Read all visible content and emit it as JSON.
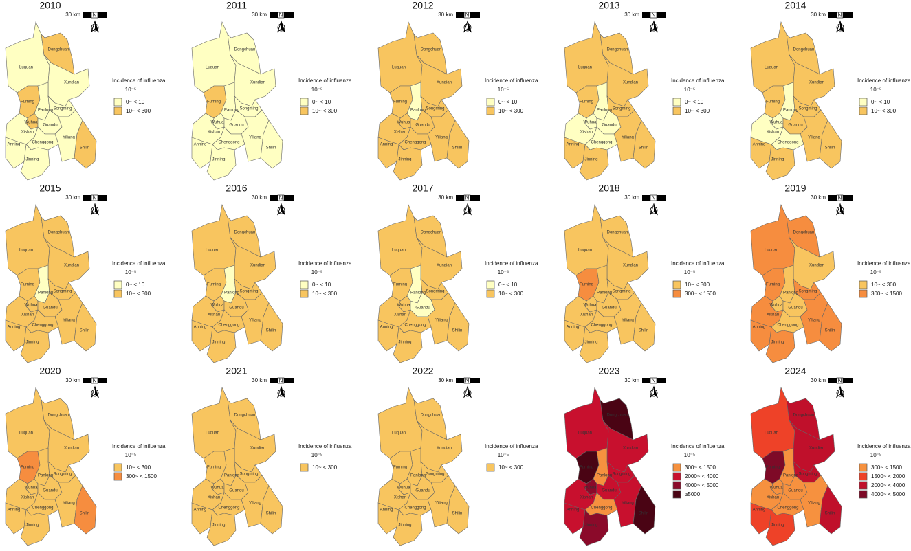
{
  "districts": [
    "Luquan",
    "Dongchuan",
    "Xundian",
    "Fuming",
    "Panlong",
    "Songming",
    "Wuhua",
    "Guandu",
    "Xishan",
    "Yiliang",
    "Anning",
    "Chenggong",
    "Shilin",
    "Jinning"
  ],
  "scale_label": "30 km",
  "north_label": "N",
  "legend_title": "Incidence of influenza",
  "legend_unit": "10⁻⁵",
  "panels": [
    {
      "year": "2010",
      "legend": [
        {
          "label": "0~ < 10",
          "color": "#ffffc2"
        },
        {
          "label": "10~ < 300",
          "color": "#f8c55f"
        }
      ],
      "district_colors": [
        "#ffffc2",
        "#f8c55f",
        "#ffffc2",
        "#f8c55f",
        "#ffffc2",
        "#ffffc2",
        "#f8c55f",
        "#ffffc2",
        "#ffffc2",
        "#ffffc2",
        "#ffffc2",
        "#ffffc2",
        "#f8c55f",
        "#ffffc2"
      ]
    },
    {
      "year": "2011",
      "legend": [
        {
          "label": "0~ < 10",
          "color": "#ffffc2"
        },
        {
          "label": "10~ < 300",
          "color": "#f8c55f"
        }
      ],
      "district_colors": [
        "#ffffc2",
        "#ffffc2",
        "#ffffc2",
        "#f8c55f",
        "#ffffc2",
        "#ffffc2",
        "#ffffc2",
        "#ffffc2",
        "#ffffc2",
        "#ffffc2",
        "#ffffc2",
        "#ffffc2",
        "#ffffc2",
        "#ffffc2"
      ]
    },
    {
      "year": "2012",
      "legend": [
        {
          "label": "0~ < 10",
          "color": "#ffffc2"
        },
        {
          "label": "10~ < 300",
          "color": "#f8c55f"
        }
      ],
      "district_colors": [
        "#f8c55f",
        "#f8c55f",
        "#f8c55f",
        "#f8c55f",
        "#ffffc2",
        "#f8c55f",
        "#f8c55f",
        "#f8c55f",
        "#f8c55f",
        "#f8c55f",
        "#f8c55f",
        "#f8c55f",
        "#f8c55f",
        "#f8c55f"
      ]
    },
    {
      "year": "2013",
      "legend": [
        {
          "label": "0~ < 10",
          "color": "#ffffc2"
        },
        {
          "label": "10~ < 300",
          "color": "#f8c55f"
        }
      ],
      "district_colors": [
        "#f8c55f",
        "#f8c55f",
        "#f8c55f",
        "#f8c55f",
        "#ffffc2",
        "#f8c55f",
        "#ffffc2",
        "#ffffc2",
        "#ffffc2",
        "#f8c55f",
        "#f8c55f",
        "#ffffc2",
        "#f8c55f",
        "#f8c55f"
      ]
    },
    {
      "year": "2014",
      "legend": [
        {
          "label": "0~ < 10",
          "color": "#ffffc2"
        },
        {
          "label": "10~ < 300",
          "color": "#f8c55f"
        }
      ],
      "district_colors": [
        "#f8c55f",
        "#f8c55f",
        "#f8c55f",
        "#f8c55f",
        "#ffffc2",
        "#f8c55f",
        "#ffffc2",
        "#f8c55f",
        "#ffffc2",
        "#f8c55f",
        "#f8c55f",
        "#ffffc2",
        "#f8c55f",
        "#f8c55f"
      ]
    },
    {
      "year": "2015",
      "legend": [
        {
          "label": "0~ < 10",
          "color": "#ffffc2"
        },
        {
          "label": "10~ < 300",
          "color": "#f8c55f"
        }
      ],
      "district_colors": [
        "#f8c55f",
        "#f8c55f",
        "#f8c55f",
        "#f8c55f",
        "#ffffc2",
        "#f8c55f",
        "#f8c55f",
        "#f8c55f",
        "#f8c55f",
        "#f8c55f",
        "#f8c55f",
        "#f8c55f",
        "#f8c55f",
        "#f8c55f"
      ]
    },
    {
      "year": "2016",
      "legend": [
        {
          "label": "0~ < 10",
          "color": "#ffffc2"
        },
        {
          "label": "10~ < 300",
          "color": "#f8c55f"
        }
      ],
      "district_colors": [
        "#f8c55f",
        "#f8c55f",
        "#f8c55f",
        "#f8c55f",
        "#ffffc2",
        "#f8c55f",
        "#f8c55f",
        "#f8c55f",
        "#f8c55f",
        "#f8c55f",
        "#f8c55f",
        "#f8c55f",
        "#f8c55f",
        "#f8c55f"
      ]
    },
    {
      "year": "2017",
      "legend": [
        {
          "label": "0~ < 10",
          "color": "#ffffc2"
        },
        {
          "label": "10~ < 300",
          "color": "#f8c55f"
        }
      ],
      "district_colors": [
        "#f8c55f",
        "#f8c55f",
        "#f8c55f",
        "#f8c55f",
        "#ffffc2",
        "#f8c55f",
        "#f8c55f",
        "#ffffc2",
        "#f8c55f",
        "#f8c55f",
        "#f8c55f",
        "#f8c55f",
        "#f8c55f",
        "#f8c55f"
      ]
    },
    {
      "year": "2018",
      "legend": [
        {
          "label": "10~ < 300",
          "color": "#f8c55f"
        },
        {
          "label": "300~ < 1500",
          "color": "#f68d3f"
        }
      ],
      "district_colors": [
        "#f8c55f",
        "#f8c55f",
        "#f8c55f",
        "#f68d3f",
        "#f8c55f",
        "#f8c55f",
        "#f8c55f",
        "#f8c55f",
        "#f8c55f",
        "#f8c55f",
        "#f8c55f",
        "#f8c55f",
        "#f8c55f",
        "#f8c55f"
      ]
    },
    {
      "year": "2019",
      "legend": [
        {
          "label": "10~ < 300",
          "color": "#f8c55f"
        },
        {
          "label": "300~ < 1500",
          "color": "#f68d3f"
        }
      ],
      "district_colors": [
        "#f68d3f",
        "#f68d3f",
        "#f8c55f",
        "#f68d3f",
        "#f8c55f",
        "#f68d3f",
        "#f8c55f",
        "#f8c55f",
        "#f68d3f",
        "#f68d3f",
        "#f68d3f",
        "#f8c55f",
        "#f68d3f",
        "#f68d3f"
      ]
    },
    {
      "year": "2020",
      "legend": [
        {
          "label": "10~ < 300",
          "color": "#f8c55f"
        },
        {
          "label": "300~ < 1500",
          "color": "#f68d3f"
        }
      ],
      "district_colors": [
        "#f8c55f",
        "#f8c55f",
        "#f8c55f",
        "#f68d3f",
        "#f8c55f",
        "#f8c55f",
        "#f8c55f",
        "#f8c55f",
        "#f8c55f",
        "#f8c55f",
        "#f8c55f",
        "#f8c55f",
        "#f68d3f",
        "#f8c55f"
      ]
    },
    {
      "year": "2021",
      "legend": [
        {
          "label": "10~ < 300",
          "color": "#f8c55f"
        }
      ],
      "district_colors": [
        "#f8c55f",
        "#f8c55f",
        "#f8c55f",
        "#f8c55f",
        "#f8c55f",
        "#f8c55f",
        "#f8c55f",
        "#f8c55f",
        "#f8c55f",
        "#f8c55f",
        "#f8c55f",
        "#f8c55f",
        "#f8c55f",
        "#f8c55f"
      ]
    },
    {
      "year": "2022",
      "legend": [
        {
          "label": "10~ < 300",
          "color": "#f8c55f"
        }
      ],
      "district_colors": [
        "#f8c55f",
        "#f8c55f",
        "#f8c55f",
        "#f8c55f",
        "#f8c55f",
        "#f8c55f",
        "#f8c55f",
        "#f8c55f",
        "#f8c55f",
        "#f8c55f",
        "#f8c55f",
        "#f8c55f",
        "#f8c55f",
        "#f8c55f"
      ]
    },
    {
      "year": "2023",
      "legend": [
        {
          "label": "300~ < 1500",
          "color": "#f6913f"
        },
        {
          "label": "2000~ < 4000",
          "color": "#c8102e"
        },
        {
          "label": "4000~ < 5000",
          "color": "#8b0a2a"
        },
        {
          "label": "≥5000",
          "color": "#4a0414"
        }
      ],
      "district_colors": [
        "#c8102e",
        "#4a0414",
        "#c8102e",
        "#4a0414",
        "#f6913f",
        "#c8102e",
        "#8b0a2a",
        "#c8102e",
        "#c8102e",
        "#c8102e",
        "#c8102e",
        "#f6913f",
        "#4a0414",
        "#8b0a2a"
      ]
    },
    {
      "year": "2024",
      "legend": [
        {
          "label": "300~ < 1500",
          "color": "#f6913f"
        },
        {
          "label": "1500~ < 2000",
          "color": "#ee4228"
        },
        {
          "label": "2000~ < 4000",
          "color": "#c0102b"
        },
        {
          "label": "4000~ < 5000",
          "color": "#7e0a27"
        }
      ],
      "district_colors": [
        "#ee4228",
        "#c0102b",
        "#c0102b",
        "#7e0a27",
        "#f6913f",
        "#c0102b",
        "#f6913f",
        "#f6913f",
        "#f6913f",
        "#f6913f",
        "#ee4228",
        "#f6913f",
        "#c0102b",
        "#ee4228"
      ]
    }
  ]
}
